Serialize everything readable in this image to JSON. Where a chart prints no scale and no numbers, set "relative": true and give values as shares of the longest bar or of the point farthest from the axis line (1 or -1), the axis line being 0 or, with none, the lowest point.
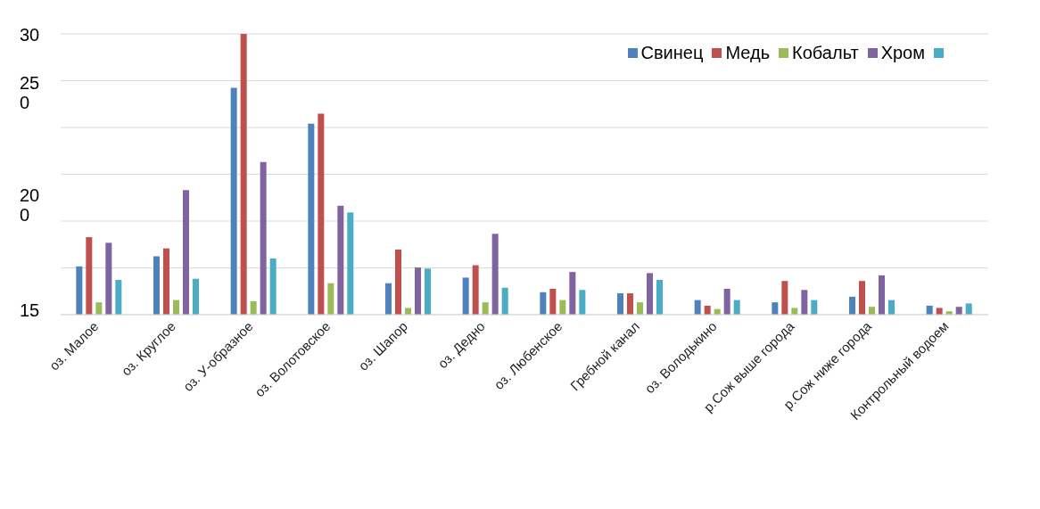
{
  "chart_data": {
    "type": "bar",
    "relative": true,
    "grid": "y",
    "legend": "top right",
    "categories": [
      "оз. Малое",
      "оз. Круглое",
      "оз. У-образное",
      "оз. Волотовское",
      "оз. Шапор",
      "оз. Дедно",
      "оз. Любенское",
      "Гребной канал",
      "оз. Володькино",
      "р.Сож выше города",
      "р.Сож ниже города",
      "Контрольный водоем"
    ],
    "series": [
      {
        "name": "Свинец",
        "color": "#4f81bd",
        "values": [
          0.172,
          0.208,
          0.808,
          0.68,
          0.112,
          0.132,
          0.08,
          0.076,
          0.052,
          0.044,
          0.064,
          0.032
        ]
      },
      {
        "name": "Медь",
        "color": "#c0504d",
        "values": [
          0.276,
          0.236,
          1,
          0.716,
          0.232,
          0.176,
          0.092,
          0.076,
          0.032,
          0.12,
          0.12,
          0.024
        ]
      },
      {
        "name": "Кобальт",
        "color": "#9bbb59",
        "values": [
          0.044,
          0.052,
          0.048,
          0.112,
          0.024,
          0.044,
          0.052,
          0.044,
          0.02,
          0.024,
          0.028,
          0.012
        ]
      },
      {
        "name": "Хром",
        "color": "#8064a2",
        "values": [
          0.256,
          0.444,
          0.544,
          0.388,
          0.168,
          0.288,
          0.152,
          0.148,
          0.092,
          0.088,
          0.14,
          0.028
        ]
      },
      {
        "color": "#4bacc6",
        "values": [
          0.124,
          0.128,
          0.2,
          0.364,
          0.164,
          0.096,
          0.088,
          0.124,
          0.052,
          0.052,
          0.052,
          0.04
        ]
      }
    ],
    "annotations": [
      "30",
      "25\n0",
      "20\n0",
      "15"
    ]
  }
}
